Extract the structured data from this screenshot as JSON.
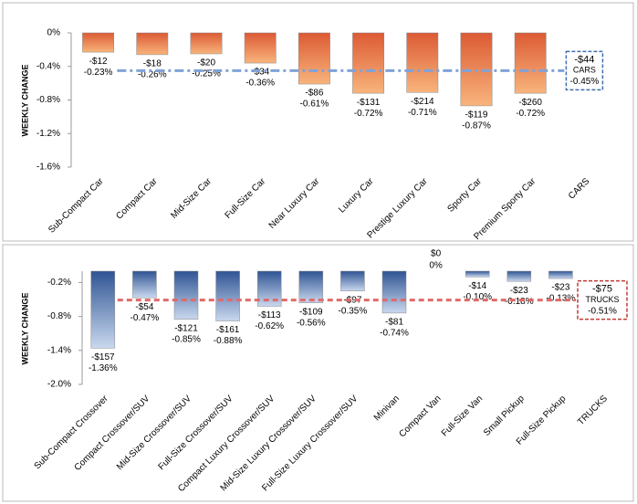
{
  "chart_data": [
    {
      "type": "bar",
      "y_label": "WEEKLY CHANGE",
      "categories": [
        "Sub-Compact Car",
        "Compact Car",
        "Mid-Size Car",
        "Full-Size Car",
        "Near Luxury Car",
        "Luxury Car",
        "Prestige Luxury Car",
        "Sporty Car",
        "Premium Sporty Car"
      ],
      "values": [
        -0.23,
        -0.26,
        -0.25,
        -0.36,
        -0.61,
        -0.72,
        -0.71,
        -0.87,
        -0.72
      ],
      "value_labels": [
        "-0.23%",
        "-0.26%",
        "-0.25%",
        "-0.36%",
        "-0.61%",
        "-0.72%",
        "-0.71%",
        "-0.87%",
        "-0.72%"
      ],
      "dollar_labels": [
        "-$12",
        "-$18",
        "-$20",
        "-$34",
        "-$86",
        "-$131",
        "-$214",
        "-$119",
        "-$260"
      ],
      "gradient": [
        "#dc5a34",
        "#f8b47c"
      ],
      "average": {
        "category": "CARS",
        "value": -0.45,
        "value_label": "-0.45%",
        "dollar_label": "-$44",
        "label": "CARS",
        "color": "#7fa2d8",
        "box_color": "#3f6fae"
      },
      "ylim": [
        -1.6,
        0
      ],
      "yticks": [
        {
          "value": 0,
          "label": "0%"
        },
        {
          "value": -0.4,
          "label": "-0.4%"
        },
        {
          "value": -0.8,
          "label": "-0.8%"
        },
        {
          "value": -1.2,
          "label": "-1.2%"
        },
        {
          "value": -1.6,
          "label": "-1.6%"
        }
      ],
      "grid": false
    },
    {
      "type": "bar",
      "y_label": "WEEKLY CHANGE",
      "categories": [
        "Sub-Compact Crossover",
        "Compact Crossover/SUV",
        "Mid-Size Crossover/SUV",
        "Full-Size Crossover/SUV",
        "Compact Luxury Crossover/SUV",
        "Mid-Size Luxury Crossover/SUV",
        "Full-Size Luxury Crossover/SUV",
        "Minivan",
        "Compact Van",
        "Full-Size Van",
        "Small Pickup",
        "Full-Size Pickup"
      ],
      "values": [
        -1.36,
        -0.47,
        -0.85,
        -0.88,
        -0.62,
        -0.56,
        -0.35,
        -0.74,
        0,
        -0.1,
        -0.18,
        -0.13
      ],
      "value_labels": [
        "-1.36%",
        "-0.47%",
        "-0.85%",
        "-0.88%",
        "-0.62%",
        "-0.56%",
        "-0.35%",
        "-0.74%",
        "0%",
        "-0.10%",
        "-0.18%",
        "-0.13%"
      ],
      "dollar_labels": [
        "-$157",
        "-$54",
        "-$121",
        "-$161",
        "-$113",
        "-$109",
        "-$97",
        "-$81",
        "$0",
        "-$14",
        "-$23",
        "-$23"
      ],
      "gradient": [
        "#2f5494",
        "#c9d8ee"
      ],
      "average": {
        "category": "TRUCKS",
        "value": -0.51,
        "value_label": "-0.51%",
        "dollar_label": "-$75",
        "label": "TRUCKS",
        "color": "#e06a6a",
        "box_color": "#c23a34"
      },
      "ylim": [
        -2.0,
        0
      ],
      "yticks": [
        {
          "value": -0.2,
          "label": "-0.2%"
        },
        {
          "value": -0.8,
          "label": "-0.8%"
        },
        {
          "value": -1.4,
          "label": "-1.4%"
        },
        {
          "value": -2.0,
          "label": "-2.0%"
        }
      ],
      "grid": false
    }
  ]
}
